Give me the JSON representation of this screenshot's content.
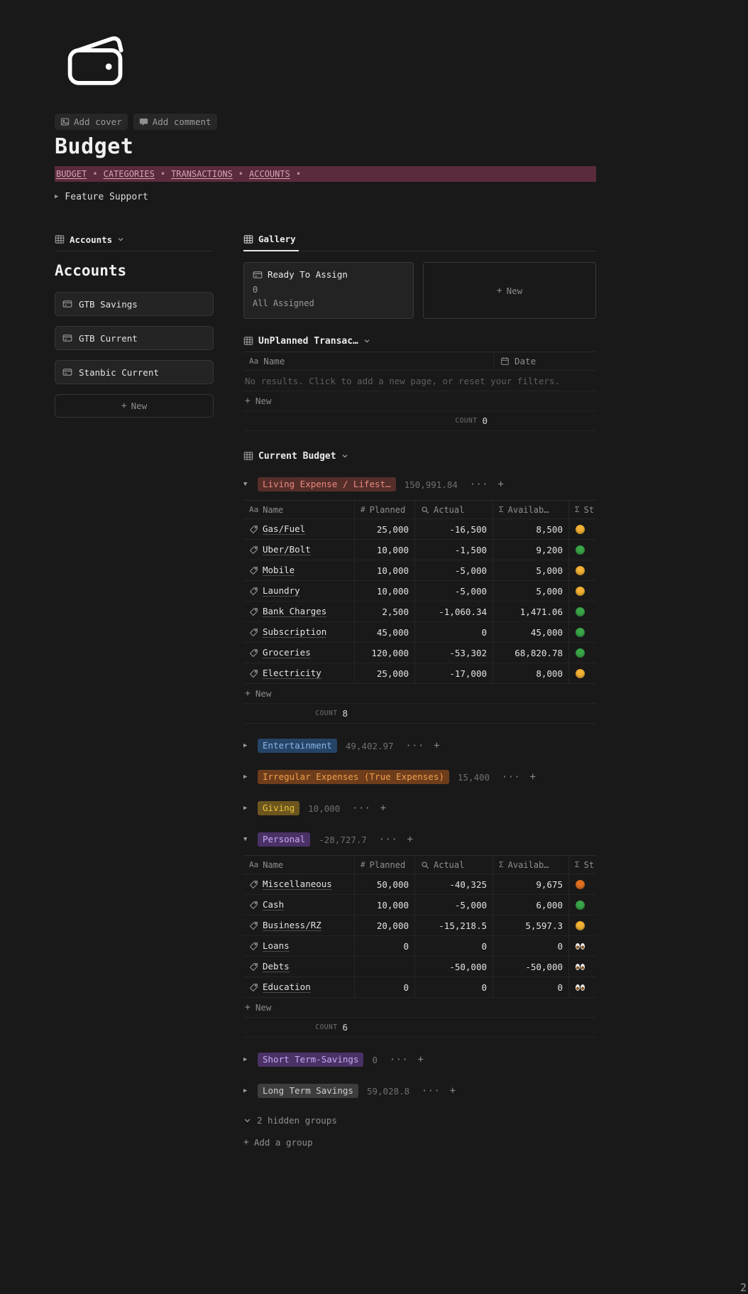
{
  "page": {
    "controls": {
      "add_cover": "Add cover",
      "add_comment": "Add comment"
    },
    "title": "Budget",
    "nav": {
      "links": [
        "BUDGET",
        "CATEGORIES",
        "TRANSACTIONS",
        "ACCOUNTS"
      ],
      "separator": "•"
    },
    "feature_toggle": "Feature Support"
  },
  "icons": {
    "plus": "+",
    "dots": "···",
    "triangle_right": "▶",
    "triangle_down": "▼"
  },
  "colors": {
    "nav_bg": "#5a2b3c",
    "nav_fg": "#d9a2b8",
    "badge": {
      "red": {
        "bg": "#552e2a",
        "fg": "#ea8a80"
      },
      "blue": {
        "bg": "#254466",
        "fg": "#8ab4e8"
      },
      "orange": {
        "bg": "#6e3d1c",
        "fg": "#f0a04a"
      },
      "yellow": {
        "bg": "#6d561d",
        "fg": "#e9c33e"
      },
      "purple": {
        "bg": "#4a3166",
        "fg": "#cbaaf5"
      },
      "gray": {
        "bg": "#3d3d3d",
        "fg": "#d0d0d0"
      }
    },
    "status": {
      "yellow": "#f2b234",
      "green": "#3aa648",
      "orange": "#e0701f"
    }
  },
  "accounts_panel": {
    "view_name": "Accounts",
    "heading": "Accounts",
    "items": [
      "GTB Savings",
      "GTB Current",
      "Stanbic Current"
    ],
    "new_label": "New"
  },
  "gallery_panel": {
    "tab": "Gallery",
    "ready_card": {
      "title": "Ready To Assign",
      "value": "0",
      "subtitle": "All Assigned"
    },
    "new_label": "New"
  },
  "unplanned": {
    "title": "UnPlanned Transac…",
    "columns": [
      {
        "icon": "Aa",
        "label": "Name"
      },
      {
        "icon": "calendar",
        "label": "Date"
      }
    ],
    "empty": "No results. Click to add a new page, or reset your filters.",
    "new_label": "New",
    "count_label": "COUNT",
    "count": "0"
  },
  "budget": {
    "title": "Current Budget",
    "new_label": "New",
    "count_label": "COUNT",
    "columns": [
      {
        "icon": "Aa",
        "label": "Name"
      },
      {
        "icon": "#",
        "label": "Planned"
      },
      {
        "icon": "search",
        "label": "Actual"
      },
      {
        "icon": "Σ",
        "label": "Availab…"
      },
      {
        "icon": "Σ",
        "label": "St"
      }
    ],
    "groups": [
      {
        "name": "Living Expense / Lifest…",
        "color": "red",
        "total": "150,991.84",
        "expanded": true,
        "count": "8",
        "rows": [
          {
            "name": "Gas/Fuel",
            "planned": "25,000",
            "actual": "-16,500",
            "available": "8,500",
            "status": "yellow"
          },
          {
            "name": "Uber/Bolt",
            "planned": "10,000",
            "actual": "-1,500",
            "available": "9,200",
            "status": "green"
          },
          {
            "name": "Mobile",
            "planned": "10,000",
            "actual": "-5,000",
            "available": "5,000",
            "status": "yellow"
          },
          {
            "name": "Laundry",
            "planned": "10,000",
            "actual": "-5,000",
            "available": "5,000",
            "status": "yellow"
          },
          {
            "name": "Bank Charges",
            "planned": "2,500",
            "actual": "-1,060.34",
            "available": "1,471.06",
            "status": "green"
          },
          {
            "name": "Subscription",
            "planned": "45,000",
            "actual": "0",
            "available": "45,000",
            "status": "green"
          },
          {
            "name": "Groceries",
            "planned": "120,000",
            "actual": "-53,302",
            "available": "68,820.78",
            "status": "green"
          },
          {
            "name": "Electricity",
            "planned": "25,000",
            "actual": "-17,000",
            "available": "8,000",
            "status": "yellow"
          }
        ]
      },
      {
        "name": "Entertainment",
        "color": "blue",
        "total": "49,402.97",
        "expanded": false
      },
      {
        "name": "Irregular Expenses (True Expenses)",
        "color": "orange",
        "total": "15,400",
        "expanded": false
      },
      {
        "name": "Giving",
        "color": "yellow",
        "total": "10,000",
        "expanded": false
      },
      {
        "name": "Personal",
        "color": "purple",
        "total": "-28,727.7",
        "expanded": true,
        "count": "6",
        "rows": [
          {
            "name": "Miscellaneous",
            "planned": "50,000",
            "actual": "-40,325",
            "available": "9,675",
            "status": "orange"
          },
          {
            "name": "Cash",
            "planned": "10,000",
            "actual": "-5,000",
            "available": "6,000",
            "status": "green"
          },
          {
            "name": "Business/RZ",
            "planned": "20,000",
            "actual": "-15,218.5",
            "available": "5,597.3",
            "status": "yellow"
          },
          {
            "name": "Loans",
            "planned": "0",
            "actual": "0",
            "available": "0",
            "status": "eyes"
          },
          {
            "name": "Debts",
            "planned": "",
            "actual": "-50,000",
            "available": "-50,000",
            "status": "eyes"
          },
          {
            "name": "Education",
            "planned": "0",
            "actual": "0",
            "available": "0",
            "status": "eyes"
          }
        ]
      },
      {
        "name": "Short Term-Savings",
        "color": "purple",
        "total": "0",
        "expanded": false
      },
      {
        "name": "Long Term Savings",
        "color": "gray",
        "total": "59,028.8",
        "expanded": false
      }
    ]
  },
  "footer": {
    "hidden_groups": "2 hidden groups",
    "add_group": "Add a group",
    "page_indicator": "2"
  }
}
